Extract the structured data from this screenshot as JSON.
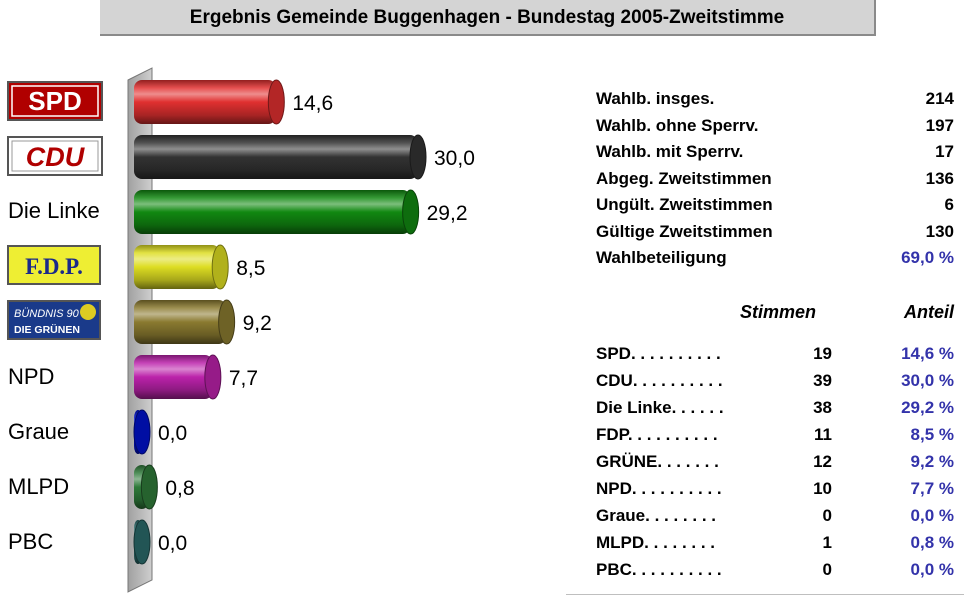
{
  "title": "Ergebnis Gemeinde Buggenhagen -  Bundestag 2005-Zweitstimme",
  "chart_data": {
    "type": "bar",
    "orientation": "horizontal",
    "categories": [
      "SPD",
      "CDU",
      "Die Linke",
      "F.D.P.",
      "BÜNDNIS 90 DIE GRÜNEN",
      "NPD",
      "Graue",
      "MLPD",
      "PBC"
    ],
    "values": [
      14.6,
      30.0,
      29.2,
      8.5,
      9.2,
      7.7,
      0.0,
      0.8,
      0.0
    ],
    "value_labels": [
      "14,6",
      "30,0",
      "29,2",
      "8,5",
      "9,2",
      "7,7",
      "0,0",
      "0,8",
      "0,0"
    ],
    "colors": [
      "#e03030",
      "#333333",
      "#118811",
      "#dddd22",
      "#8a7a30",
      "#bb22aa",
      "#0011cc",
      "#2f7a3a",
      "#2a6a6a"
    ],
    "xlim": [
      0,
      30.0
    ],
    "grid": false
  },
  "party_labels": {
    "spd": "SPD",
    "cdu": "CDU",
    "linke": "Die Linke",
    "fdp": "F.D.P.",
    "gruene_top": "BÜNDNIS 90",
    "gruene_bottom": "DIE GRÜNEN",
    "npd": "NPD",
    "graue": "Graue",
    "mlpd": "MLPD",
    "pbc": "PBC"
  },
  "stats": [
    {
      "label": "Wahlb. insges.",
      "value": "214"
    },
    {
      "label": "Wahlb. ohne Sperrv.",
      "value": "197"
    },
    {
      "label": "Wahlb. mit Sperrv.",
      "value": "17"
    },
    {
      "label": "Abgeg. Zweitstimmen",
      "value": "136"
    },
    {
      "label": "Ungült. Zweitstimmen",
      "value": "6"
    },
    {
      "label": "Gültige Zweitstimmen",
      "value": "130"
    },
    {
      "label": "Wahlbeteiligung",
      "value": "69,0 %"
    }
  ],
  "results_header": {
    "votes": "Stimmen",
    "share": "Anteil"
  },
  "results": [
    {
      "name": "SPD",
      "dots": ". . . . . . . . . .",
      "votes": "19",
      "share": "14,6 %"
    },
    {
      "name": "CDU",
      "dots": ". . . . . . . . . .",
      "votes": "39",
      "share": "30,0 %"
    },
    {
      "name": "Die Linke",
      "dots": ". . . . . .",
      "votes": "38",
      "share": "29,2 %"
    },
    {
      "name": "FDP",
      "dots": ". . . . . . . . . .",
      "votes": "11",
      "share": "8,5 %"
    },
    {
      "name": "GRÜNE",
      "dots": ". . . . . . .",
      "votes": "12",
      "share": "9,2 %"
    },
    {
      "name": "NPD",
      "dots": ". . . . . . . . . .",
      "votes": "10",
      "share": "7,7 %"
    },
    {
      "name": "Graue",
      "dots": ". . . . . . . .",
      "votes": "0",
      "share": "0,0 %"
    },
    {
      "name": "MLPD",
      "dots": ". . . . . . . .",
      "votes": "1",
      "share": "0,8 %"
    },
    {
      "name": "PBC",
      "dots": ". . . . . . . . . .",
      "votes": "0",
      "share": "0,0 %"
    }
  ]
}
